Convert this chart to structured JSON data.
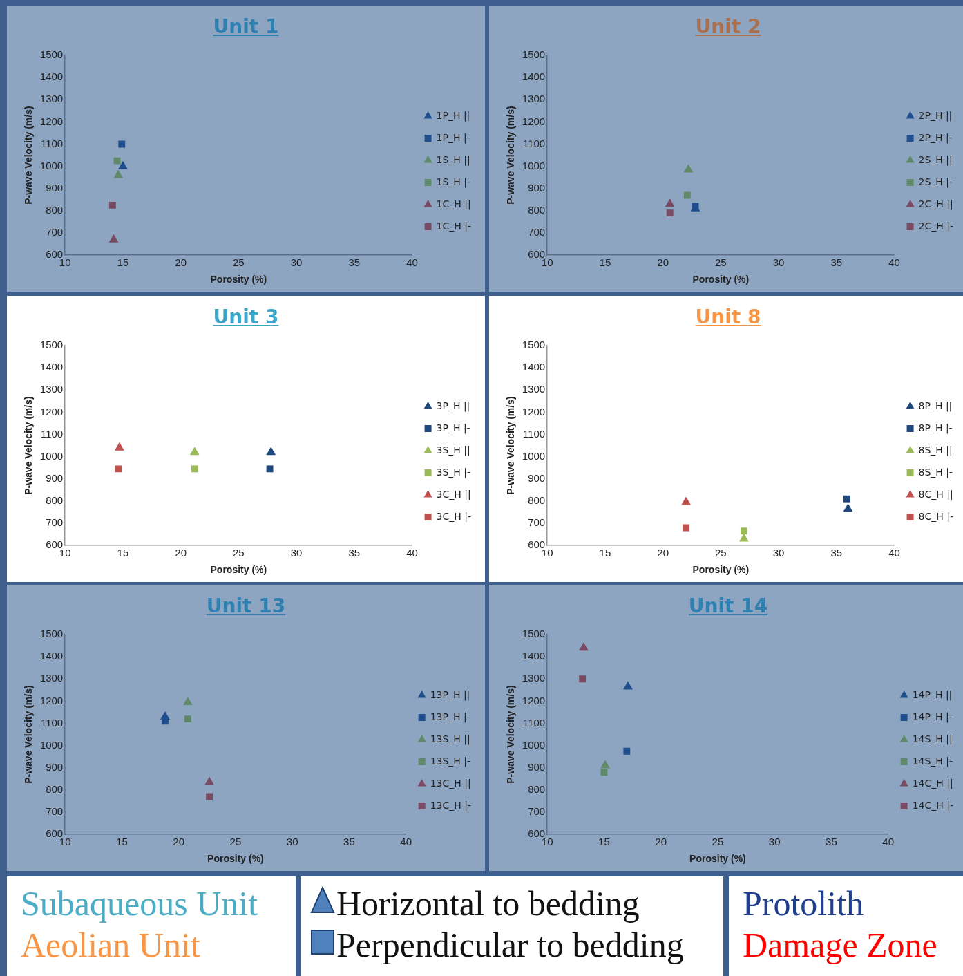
{
  "chart_data": [
    {
      "type": "scatter",
      "title": "Unit 1",
      "xlabel": "Porosity (%)",
      "ylabel": "P-wave Velocity (m/s)",
      "xlim": [
        10,
        40
      ],
      "xticks": [
        10,
        15,
        20,
        25,
        30,
        35,
        40
      ],
      "ylim": [
        600,
        1500
      ],
      "yticks": [
        600,
        700,
        800,
        900,
        1000,
        1100,
        1200,
        1300,
        1400,
        1500
      ],
      "grid": false,
      "legend": "right",
      "series": [
        {
          "name": "1P_H ||",
          "color": "#1f4e8c",
          "marker": "triangle",
          "x": [
            15.0
          ],
          "values": [
            1000
          ]
        },
        {
          "name": "1P_H |-",
          "color": "#1f4e8c",
          "marker": "square",
          "x": [
            14.9
          ],
          "values": [
            1100
          ]
        },
        {
          "name": "1S_H ||",
          "color": "#5f8a6a",
          "marker": "triangle",
          "x": [
            14.6
          ],
          "values": [
            960
          ]
        },
        {
          "name": "1S_H |-",
          "color": "#5f8a6a",
          "marker": "square",
          "x": [
            14.5
          ],
          "values": [
            1025
          ]
        },
        {
          "name": "1C_H ||",
          "color": "#7a4a62",
          "marker": "triangle",
          "x": [
            14.2
          ],
          "values": [
            670
          ]
        },
        {
          "name": "1C_H |-",
          "color": "#7a4a62",
          "marker": "square",
          "x": [
            14.1
          ],
          "values": [
            825
          ]
        }
      ]
    },
    {
      "type": "scatter",
      "title": "Unit 2",
      "xlabel": "Porosity (%)",
      "ylabel": "P-wave Velocity (m/s)",
      "xlim": [
        10,
        40
      ],
      "xticks": [
        10,
        15,
        20,
        25,
        30,
        35,
        40
      ],
      "ylim": [
        600,
        1500
      ],
      "yticks": [
        600,
        700,
        800,
        900,
        1000,
        1100,
        1200,
        1300,
        1400,
        1500
      ],
      "grid": false,
      "legend": "right",
      "series": [
        {
          "name": "2P_H ||",
          "color": "#1f4e8c",
          "marker": "triangle",
          "x": [
            22.8
          ],
          "values": [
            810
          ]
        },
        {
          "name": "2P_H |-",
          "color": "#1f4e8c",
          "marker": "square",
          "x": [
            22.8
          ],
          "values": [
            820
          ]
        },
        {
          "name": "2S_H ||",
          "color": "#5f8a6a",
          "marker": "triangle",
          "x": [
            22.2
          ],
          "values": [
            985
          ]
        },
        {
          "name": "2S_H |-",
          "color": "#5f8a6a",
          "marker": "square",
          "x": [
            22.1
          ],
          "values": [
            870
          ]
        },
        {
          "name": "2C_H ||",
          "color": "#7a4a62",
          "marker": "triangle",
          "x": [
            20.6
          ],
          "values": [
            830
          ]
        },
        {
          "name": "2C_H |-",
          "color": "#7a4a62",
          "marker": "square",
          "x": [
            20.6
          ],
          "values": [
            790
          ]
        }
      ]
    },
    {
      "type": "scatter",
      "title": "Unit 3",
      "xlabel": "Porosity (%)",
      "ylabel": "P-wave Velocity (m/s)",
      "xlim": [
        10,
        40
      ],
      "xticks": [
        10,
        15,
        20,
        25,
        30,
        35,
        40
      ],
      "ylim": [
        600,
        1500
      ],
      "yticks": [
        600,
        700,
        800,
        900,
        1000,
        1100,
        1200,
        1300,
        1400,
        1500
      ],
      "grid": false,
      "legend": "right",
      "series": [
        {
          "name": "3P_H ||",
          "color": "#1f497d",
          "marker": "triangle",
          "x": [
            27.8
          ],
          "values": [
            1020
          ]
        },
        {
          "name": "3P_H |-",
          "color": "#1f497d",
          "marker": "square",
          "x": [
            27.7
          ],
          "values": [
            945
          ]
        },
        {
          "name": "3S_H ||",
          "color": "#9bbb59",
          "marker": "triangle",
          "x": [
            21.2
          ],
          "values": [
            1020
          ]
        },
        {
          "name": "3S_H |-",
          "color": "#9bbb59",
          "marker": "square",
          "x": [
            21.2
          ],
          "values": [
            945
          ]
        },
        {
          "name": "3C_H ||",
          "color": "#c0504d",
          "marker": "triangle",
          "x": [
            14.7
          ],
          "values": [
            1040
          ]
        },
        {
          "name": "3C_H |-",
          "color": "#c0504d",
          "marker": "square",
          "x": [
            14.6
          ],
          "values": [
            945
          ]
        }
      ]
    },
    {
      "type": "scatter",
      "title": "Unit 8",
      "xlabel": "Porosity (%)",
      "ylabel": "P-wave Velocity (m/s)",
      "xlim": [
        10,
        40
      ],
      "xticks": [
        10,
        15,
        20,
        25,
        30,
        35,
        40
      ],
      "ylim": [
        600,
        1500
      ],
      "yticks": [
        600,
        700,
        800,
        900,
        1000,
        1100,
        1200,
        1300,
        1400,
        1500
      ],
      "grid": false,
      "legend": "right",
      "series": [
        {
          "name": "8P_H ||",
          "color": "#1f497d",
          "marker": "triangle",
          "x": [
            36.0
          ],
          "values": [
            765
          ]
        },
        {
          "name": "8P_H |-",
          "color": "#1f497d",
          "marker": "square",
          "x": [
            35.9
          ],
          "values": [
            810
          ]
        },
        {
          "name": "8S_H ||",
          "color": "#9bbb59",
          "marker": "triangle",
          "x": [
            27.0
          ],
          "values": [
            630
          ]
        },
        {
          "name": "8S_H |-",
          "color": "#9bbb59",
          "marker": "square",
          "x": [
            27.0
          ],
          "values": [
            665
          ]
        },
        {
          "name": "8C_H ||",
          "color": "#c0504d",
          "marker": "triangle",
          "x": [
            22.0
          ],
          "values": [
            795
          ]
        },
        {
          "name": "8C_H |-",
          "color": "#c0504d",
          "marker": "square",
          "x": [
            22.0
          ],
          "values": [
            680
          ]
        }
      ]
    },
    {
      "type": "scatter",
      "title": "Unit 13",
      "xlabel": "Porosity (%)",
      "ylabel": "P-wave Velocity (m/s)",
      "xlim": [
        10,
        40
      ],
      "xticks": [
        10,
        15,
        20,
        25,
        30,
        35,
        40
      ],
      "ylim": [
        600,
        1500
      ],
      "yticks": [
        600,
        700,
        800,
        900,
        1000,
        1100,
        1200,
        1300,
        1400,
        1500
      ],
      "grid": false,
      "legend": "right",
      "series": [
        {
          "name": "13P_H ||",
          "color": "#1f4e8c",
          "marker": "triangle",
          "x": [
            18.8
          ],
          "values": [
            1130
          ]
        },
        {
          "name": "13P_H |-",
          "color": "#1f4e8c",
          "marker": "square",
          "x": [
            18.8
          ],
          "values": [
            1110
          ]
        },
        {
          "name": "13S_H ||",
          "color": "#5f8a6a",
          "marker": "triangle",
          "x": [
            20.8
          ],
          "values": [
            1195
          ]
        },
        {
          "name": "13S_H |-",
          "color": "#5f8a6a",
          "marker": "square",
          "x": [
            20.8
          ],
          "values": [
            1120
          ]
        },
        {
          "name": "13C_H ||",
          "color": "#7a4a62",
          "marker": "triangle",
          "x": [
            22.7
          ],
          "values": [
            835
          ]
        },
        {
          "name": "13C_H |-",
          "color": "#7a4a62",
          "marker": "square",
          "x": [
            22.7
          ],
          "values": [
            770
          ]
        }
      ]
    },
    {
      "type": "scatter",
      "title": "Unit 14",
      "xlabel": "Porosity (%)",
      "ylabel": "P-wave Velocity (m/s)",
      "xlim": [
        10,
        40
      ],
      "xticks": [
        10,
        15,
        20,
        25,
        30,
        35,
        40
      ],
      "ylim": [
        600,
        1500
      ],
      "yticks": [
        600,
        700,
        800,
        900,
        1000,
        1100,
        1200,
        1300,
        1400,
        1500
      ],
      "grid": false,
      "legend": "right",
      "series": [
        {
          "name": "14P_H ||",
          "color": "#1f4e8c",
          "marker": "triangle",
          "x": [
            17.1
          ],
          "values": [
            1265
          ]
        },
        {
          "name": "14P_H |-",
          "color": "#1f4e8c",
          "marker": "square",
          "x": [
            17.0
          ],
          "values": [
            975
          ]
        },
        {
          "name": "14S_H ||",
          "color": "#5f8a6a",
          "marker": "triangle",
          "x": [
            15.1
          ],
          "values": [
            910
          ]
        },
        {
          "name": "14S_H |-",
          "color": "#5f8a6a",
          "marker": "square",
          "x": [
            15.0
          ],
          "values": [
            880
          ]
        },
        {
          "name": "14C_H ||",
          "color": "#7a4a62",
          "marker": "triangle",
          "x": [
            13.2
          ],
          "values": [
            1440
          ]
        },
        {
          "name": "14C_H |-",
          "color": "#7a4a62",
          "marker": "square",
          "x": [
            13.1
          ],
          "values": [
            1300
          ]
        }
      ]
    },
    {
      "type": "other",
      "annotations": [
        "Subaqueous Unit",
        "Aeolian Unit",
        "Horizontal to bedding",
        "Perpendicular to bedding",
        "Protolith",
        "Damage Zone"
      ]
    }
  ]
}
